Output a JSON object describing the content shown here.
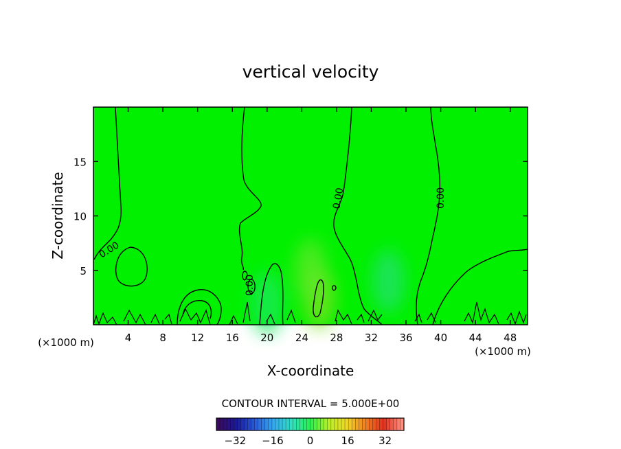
{
  "chart_data": {
    "type": "heatmap",
    "title": "vertical velocity",
    "xlabel": "X-coordinate",
    "ylabel": "Z-coordinate",
    "x_unit": "(×1000 m)",
    "z_unit": "(×1000 m)",
    "xlim": [
      0,
      50
    ],
    "ylim": [
      0,
      20
    ],
    "x_ticks": [
      4,
      8,
      12,
      16,
      20,
      24,
      28,
      32,
      36,
      40,
      44,
      48
    ],
    "y_ticks": [
      5,
      10,
      15
    ],
    "contour_interval_text": "CONTOUR INTERVAL = 5.000E+00",
    "contour_label": "0.00",
    "background_color": "#00f000",
    "colorbar": {
      "range": [
        -40,
        40
      ],
      "ticks": [
        -32,
        -16,
        0,
        16,
        32
      ],
      "colors": [
        "#3a0a5a",
        "#1a1a9a",
        "#2a5ad8",
        "#35a8f0",
        "#30e0c0",
        "#28f050",
        "#b8f028",
        "#f0d828",
        "#f08020",
        "#e03020",
        "#ff9080"
      ]
    },
    "highlights": [
      {
        "x": 26,
        "z": 2.5,
        "value": 4,
        "color": "#80e020"
      },
      {
        "x": 25,
        "z": 5,
        "value": 3,
        "color": "#60e828"
      },
      {
        "x": 34,
        "z": 4,
        "value": -2,
        "color": "#20e070"
      },
      {
        "x": 20,
        "z": 2,
        "value": -1,
        "color": "#18e860"
      }
    ]
  }
}
